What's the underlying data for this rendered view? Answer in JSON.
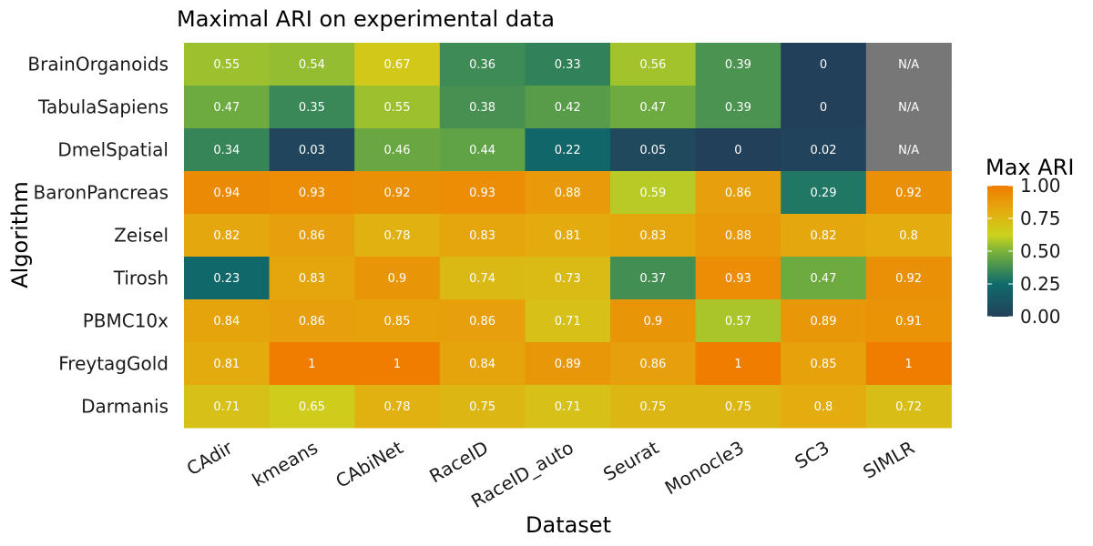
{
  "chart_data": {
    "type": "heatmap",
    "title": "Maximal ARI on experimental data",
    "xlabel": "Dataset",
    "ylabel": "Algorithm",
    "x_categories": [
      "CAdir",
      "kmeans",
      "CAbiNet",
      "RaceID",
      "RaceID_auto",
      "Seurat",
      "Monocle3",
      "SC3",
      "SIMLR"
    ],
    "y_categories": [
      "BrainOrganoids",
      "TabulaSapiens",
      "DmelSpatial",
      "BaronPancreas",
      "Zeisel",
      "Tirosh",
      "PBMC10x",
      "FreytagGold",
      "Darmanis"
    ],
    "values": [
      [
        0.55,
        0.54,
        0.67,
        0.36,
        0.33,
        0.56,
        0.39,
        0,
        null
      ],
      [
        0.47,
        0.35,
        0.55,
        0.38,
        0.42,
        0.47,
        0.39,
        0,
        null
      ],
      [
        0.34,
        0.03,
        0.46,
        0.44,
        0.22,
        0.05,
        0,
        0.02,
        null
      ],
      [
        0.94,
        0.93,
        0.92,
        0.93,
        0.88,
        0.59,
        0.86,
        0.29,
        0.92
      ],
      [
        0.82,
        0.86,
        0.78,
        0.83,
        0.81,
        0.83,
        0.88,
        0.82,
        0.8
      ],
      [
        0.23,
        0.83,
        0.9,
        0.74,
        0.73,
        0.37,
        0.93,
        0.47,
        0.92
      ],
      [
        0.84,
        0.86,
        0.85,
        0.86,
        0.71,
        0.9,
        0.57,
        0.89,
        0.91
      ],
      [
        0.81,
        1,
        1,
        0.84,
        0.89,
        0.86,
        1,
        0.85,
        1
      ],
      [
        0.71,
        0.65,
        0.78,
        0.75,
        0.71,
        0.75,
        0.75,
        0.8,
        0.72
      ]
    ],
    "missing_label": "N/A",
    "missing_color": "#777777",
    "color_scale": {
      "stops": [
        {
          "value": 0.0,
          "color": "#23405a"
        },
        {
          "value": 0.25,
          "color": "#0f6b6b"
        },
        {
          "value": 0.5,
          "color": "#7ab33a"
        },
        {
          "value": 0.62,
          "color": "#cbd21e"
        },
        {
          "value": 0.8,
          "color": "#e3ad0f"
        },
        {
          "value": 1.0,
          "color": "#ef7d00"
        }
      ]
    },
    "legend": {
      "title": "Max ARI",
      "ticks": [
        "0.00",
        "0.25",
        "0.50",
        "0.75",
        "1.00"
      ],
      "placement": "right"
    },
    "grid": false
  }
}
